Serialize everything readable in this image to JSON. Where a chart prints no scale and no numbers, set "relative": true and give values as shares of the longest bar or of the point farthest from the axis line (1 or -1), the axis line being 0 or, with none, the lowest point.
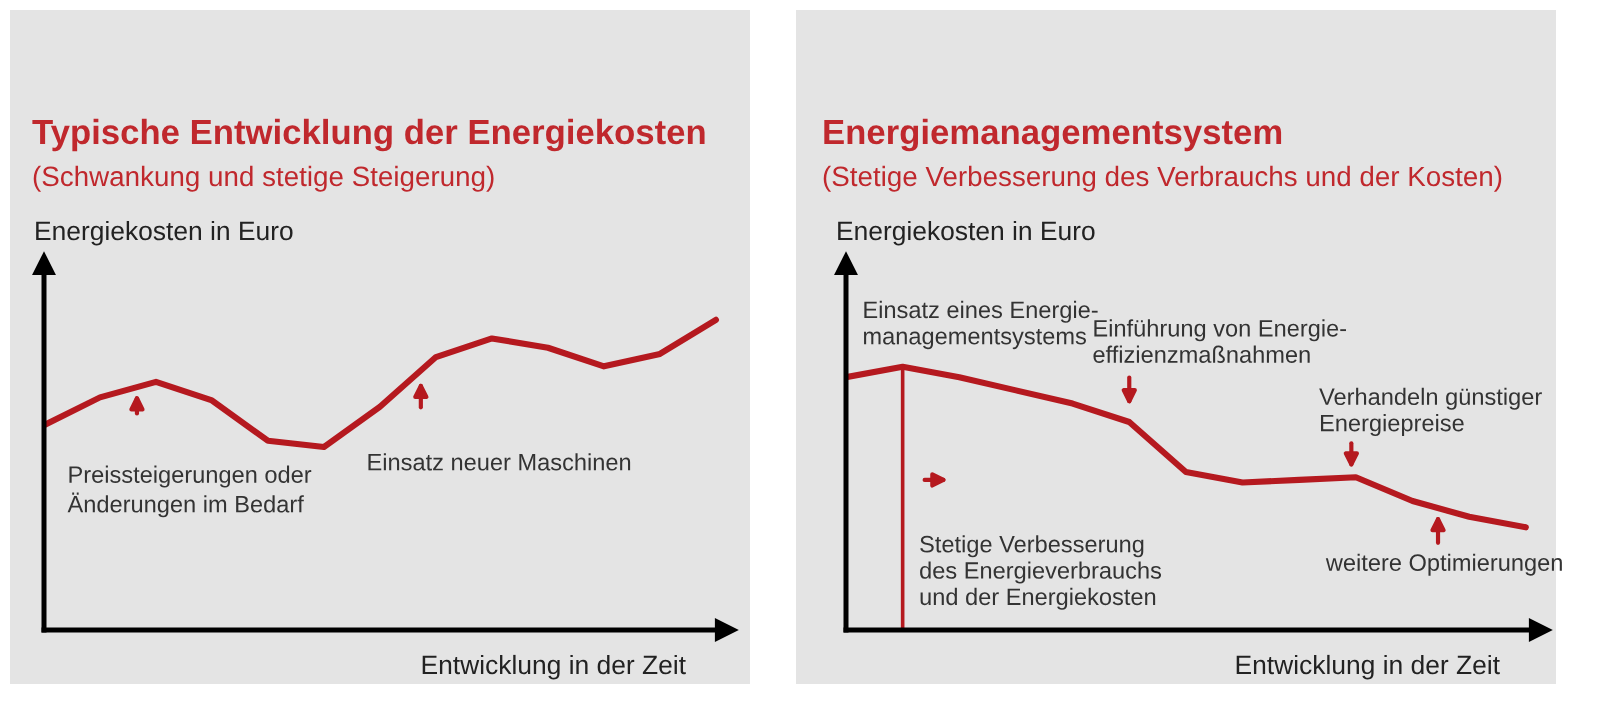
{
  "chart_data": [
    {
      "type": "line",
      "relative": true,
      "tick_labels": false,
      "title": "Typische Entwicklung der Energiekosten",
      "subtitle": "(Schwankung und stetige Steigerung)",
      "xlabel": "Entwicklung in der Zeit",
      "ylabel": "Energiekosten in Euro",
      "categories": [
        null,
        null,
        null,
        null,
        null,
        null,
        null,
        null,
        null,
        null,
        null,
        null,
        null
      ],
      "series": [
        {
          "color": "#b5191f",
          "values": [
            0.66,
            0.75,
            0.8,
            0.74,
            0.61,
            0.59,
            0.72,
            0.88,
            0.94,
            0.91,
            0.85,
            0.89,
            1.0
          ]
        }
      ],
      "annotations": [
        "Preissteigerungen oder\nÄnderungen im Bedarf",
        "Einsatz neuer Maschinen"
      ]
    },
    {
      "type": "line",
      "relative": true,
      "tick_labels": false,
      "title": "Energiemanagementsystem",
      "subtitle": "(Stetige Verbesserung des Verbrauchs und der Kosten)",
      "xlabel": "Entwicklung in der Zeit",
      "ylabel": "Energiekosten in Euro",
      "categories": [
        null,
        null,
        null,
        null,
        null,
        null,
        null,
        null,
        null,
        null,
        null,
        null,
        null
      ],
      "series": [
        {
          "color": "#b5191f",
          "values": [
            0.96,
            1.0,
            0.96,
            0.91,
            0.86,
            0.79,
            0.6,
            0.56,
            0.57,
            0.58,
            0.49,
            0.43,
            0.39
          ]
        }
      ],
      "annotations": [
        "Einsatz eines Energie-\nmanagementsystems",
        "Einführung von Energie-\neffizienzmaßnahmen",
        "Verhandeln günstiger\nEnergiepreise",
        "weitere Optimierungen",
        "Stetige Verbesserung\ndes Energieverbrauchs\nund der Energiekosten"
      ]
    }
  ]
}
